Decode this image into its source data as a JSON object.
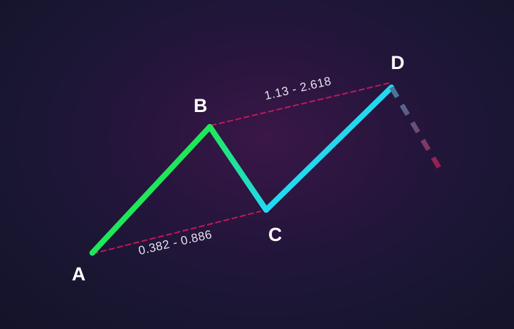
{
  "points": {
    "a": "A",
    "b": "B",
    "c": "C",
    "d": "D"
  },
  "ratios": {
    "ac": "0.382 - 0.886",
    "bd": "1.13 - 2.618"
  },
  "colors": {
    "leg_green": "#1ee85a",
    "leg_cyan": "#22d9f0",
    "projection_start": "#3d7f9e",
    "projection_end": "#a0174a",
    "ratio_line": "#c2185b",
    "background_center": "#3a1747",
    "background_edge": "#141329"
  }
}
